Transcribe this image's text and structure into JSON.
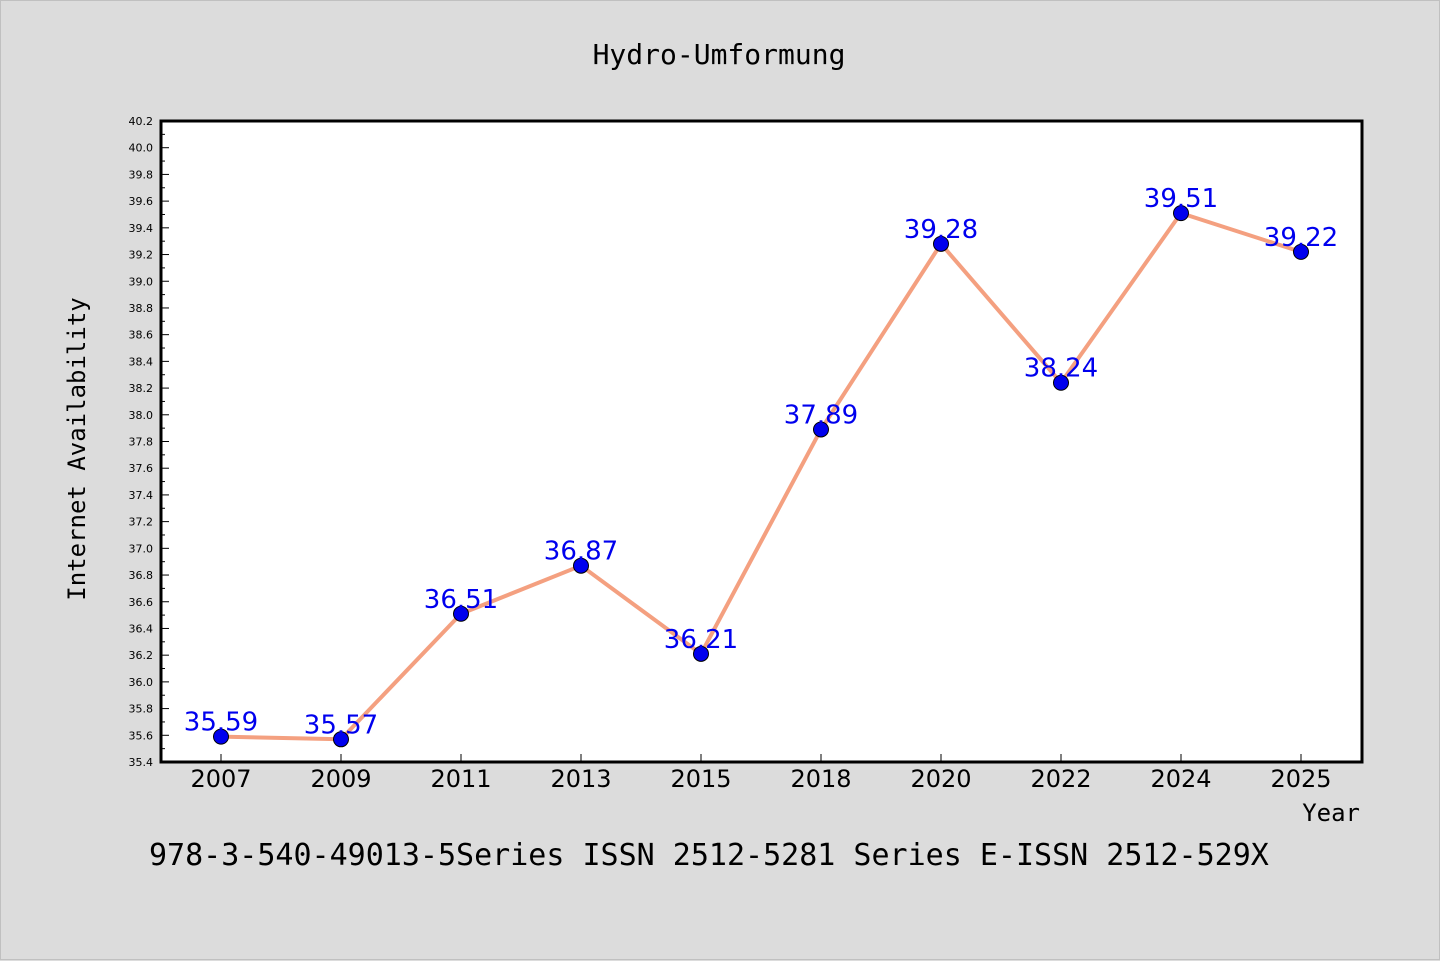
{
  "chart_data": {
    "type": "line",
    "title": "Hydro-Umformung",
    "xlabel": "Year",
    "ylabel": "Internet Availability",
    "categories": [
      "2007",
      "2009",
      "2011",
      "2013",
      "2015",
      "2018",
      "2020",
      "2022",
      "2024",
      "2025"
    ],
    "series": [
      {
        "values": [
          35.59,
          35.57,
          36.51,
          36.87,
          36.21,
          37.89,
          39.28,
          38.24,
          39.51,
          39.22
        ]
      }
    ],
    "data_labels": [
      "35.59",
      "35.57",
      "36.51",
      "36.87",
      "36.21",
      "37.89",
      "39.28",
      "38.24",
      "39.51",
      "39.22"
    ],
    "ylim": [
      35.4,
      40.2
    ],
    "yticks": [
      "35.4",
      "35.6",
      "35.8",
      "36.0",
      "36.2",
      "36.4",
      "36.6",
      "36.8",
      "37.0",
      "37.2",
      "37.4",
      "37.6",
      "37.8",
      "38.0",
      "38.2",
      "38.4",
      "38.6",
      "38.8",
      "39.0",
      "39.2",
      "39.4",
      "39.6",
      "39.8",
      "40.0",
      "40.2"
    ],
    "grid": false,
    "line_color": "#f4a080",
    "marker_color": "#0000ee",
    "label_color": "#0000ee"
  },
  "footer": {
    "text": "978-3-540-49013-5Series ISSN 2512-5281 Series E-ISSN 2512-529X"
  }
}
